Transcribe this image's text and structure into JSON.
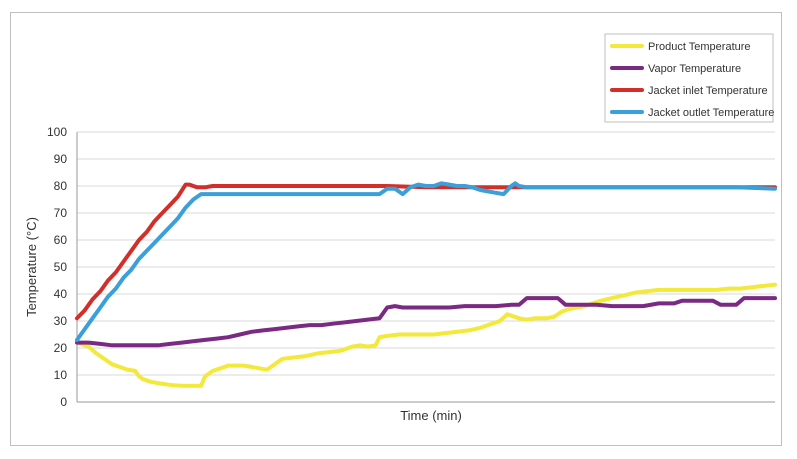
{
  "chart_data": {
    "type": "line",
    "title": "",
    "xlabel": "Time (min)",
    "ylabel": "Temperature (°C)",
    "ylim": [
      0,
      100
    ],
    "yticks": [
      0,
      10,
      20,
      30,
      40,
      50,
      60,
      70,
      80,
      90,
      100
    ],
    "x_tick_labels": false,
    "grid": "horizontal",
    "legend_position": "top-right",
    "series": [
      {
        "name": "Product Temperature",
        "color": "#f2e93a",
        "points": [
          [
            0,
            22
          ],
          [
            3,
            20.5
          ],
          [
            5,
            18
          ],
          [
            7,
            16
          ],
          [
            9,
            14
          ],
          [
            11,
            13
          ],
          [
            13,
            12
          ],
          [
            15,
            11.5
          ],
          [
            16,
            9.5
          ],
          [
            17,
            8.5
          ],
          [
            19,
            7.5
          ],
          [
            21,
            7
          ],
          [
            23,
            6.5
          ],
          [
            25,
            6.2
          ],
          [
            27,
            6
          ],
          [
            29,
            6
          ],
          [
            31,
            6
          ],
          [
            32,
            6
          ],
          [
            33,
            9.5
          ],
          [
            35,
            11.5
          ],
          [
            37,
            12.5
          ],
          [
            39,
            13.5
          ],
          [
            41,
            13.5
          ],
          [
            43,
            13.5
          ],
          [
            45,
            13
          ],
          [
            47,
            12.5
          ],
          [
            49,
            12
          ],
          [
            51,
            14
          ],
          [
            53,
            16
          ],
          [
            56,
            16.5
          ],
          [
            59,
            17
          ],
          [
            62,
            18
          ],
          [
            65,
            18.5
          ],
          [
            68,
            19
          ],
          [
            71,
            20.5
          ],
          [
            73,
            21
          ],
          [
            75,
            20.5
          ],
          [
            77,
            21
          ],
          [
            78,
            24
          ],
          [
            80,
            24.5
          ],
          [
            83,
            25
          ],
          [
            86,
            25
          ],
          [
            89,
            25
          ],
          [
            92,
            25
          ],
          [
            95,
            25.5
          ],
          [
            98,
            26
          ],
          [
            101,
            26.5
          ],
          [
            104,
            27.5
          ],
          [
            107,
            29
          ],
          [
            109,
            30
          ],
          [
            111,
            32.5
          ],
          [
            112,
            32
          ],
          [
            114,
            31
          ],
          [
            116,
            30.5
          ],
          [
            118,
            31
          ],
          [
            121,
            31
          ],
          [
            123,
            31.5
          ],
          [
            125,
            33.5
          ],
          [
            127,
            34.5
          ],
          [
            129,
            35
          ],
          [
            131,
            35.5
          ],
          [
            133,
            36.5
          ],
          [
            135,
            37.5
          ],
          [
            138,
            38.5
          ],
          [
            141,
            39.5
          ],
          [
            144,
            40.5
          ],
          [
            147,
            41
          ],
          [
            150,
            41.5
          ],
          [
            153,
            41.5
          ],
          [
            156,
            41.5
          ],
          [
            159,
            41.5
          ],
          [
            162,
            41.5
          ],
          [
            165,
            41.5
          ],
          [
            168,
            42
          ],
          [
            171,
            42
          ],
          [
            174,
            42.5
          ],
          [
            177,
            43
          ],
          [
            180,
            43.5
          ]
        ]
      },
      {
        "name": "Vapor Temperature",
        "color": "#7b2a84",
        "points": [
          [
            0,
            22
          ],
          [
            3,
            22
          ],
          [
            6,
            21.5
          ],
          [
            9,
            21
          ],
          [
            12,
            21
          ],
          [
            15,
            21
          ],
          [
            18,
            21
          ],
          [
            21,
            21
          ],
          [
            24,
            21.5
          ],
          [
            27,
            22
          ],
          [
            30,
            22.5
          ],
          [
            33,
            23
          ],
          [
            36,
            23.5
          ],
          [
            39,
            24
          ],
          [
            42,
            25
          ],
          [
            45,
            26
          ],
          [
            48,
            26.5
          ],
          [
            51,
            27
          ],
          [
            54,
            27.5
          ],
          [
            57,
            28
          ],
          [
            60,
            28.5
          ],
          [
            63,
            28.5
          ],
          [
            66,
            29
          ],
          [
            69,
            29.5
          ],
          [
            72,
            30
          ],
          [
            75,
            30.5
          ],
          [
            78,
            31
          ],
          [
            80,
            35
          ],
          [
            82,
            35.5
          ],
          [
            84,
            35
          ],
          [
            88,
            35
          ],
          [
            92,
            35
          ],
          [
            96,
            35
          ],
          [
            100,
            35.5
          ],
          [
            104,
            35.5
          ],
          [
            108,
            35.5
          ],
          [
            112,
            36
          ],
          [
            114,
            36
          ],
          [
            116,
            38.5
          ],
          [
            120,
            38.5
          ],
          [
            124,
            38.5
          ],
          [
            126,
            36
          ],
          [
            130,
            36
          ],
          [
            134,
            36
          ],
          [
            138,
            35.5
          ],
          [
            142,
            35.5
          ],
          [
            146,
            35.5
          ],
          [
            150,
            36.5
          ],
          [
            154,
            36.5
          ],
          [
            156,
            37.5
          ],
          [
            160,
            37.5
          ],
          [
            164,
            37.5
          ],
          [
            166,
            36
          ],
          [
            170,
            36
          ],
          [
            172,
            38.5
          ],
          [
            176,
            38.5
          ],
          [
            180,
            38.5
          ]
        ]
      },
      {
        "name": "Jacket inlet Temperature",
        "color": "#d22f2b",
        "points": [
          [
            0,
            31
          ],
          [
            2,
            34
          ],
          [
            4,
            38
          ],
          [
            6,
            41
          ],
          [
            8,
            45
          ],
          [
            10,
            48
          ],
          [
            12,
            52
          ],
          [
            14,
            56
          ],
          [
            16,
            60
          ],
          [
            18,
            63
          ],
          [
            20,
            67
          ],
          [
            22,
            70
          ],
          [
            24,
            73
          ],
          [
            26,
            76
          ],
          [
            28,
            80.5
          ],
          [
            29,
            80.5
          ],
          [
            30,
            80
          ],
          [
            31,
            79.5
          ],
          [
            33,
            79.5
          ],
          [
            35,
            80
          ],
          [
            40,
            80
          ],
          [
            50,
            80
          ],
          [
            60,
            80
          ],
          [
            70,
            80
          ],
          [
            80,
            80
          ],
          [
            90,
            79.5
          ],
          [
            100,
            79.5
          ],
          [
            110,
            79.5
          ],
          [
            120,
            79.5
          ],
          [
            130,
            79.5
          ],
          [
            140,
            79.5
          ],
          [
            150,
            79.5
          ],
          [
            160,
            79.5
          ],
          [
            170,
            79.5
          ],
          [
            180,
            79.5
          ]
        ]
      },
      {
        "name": "Jacket outlet Temperature",
        "color": "#3ba0d9",
        "points": [
          [
            0,
            23
          ],
          [
            2,
            27
          ],
          [
            4,
            31
          ],
          [
            6,
            35
          ],
          [
            8,
            39
          ],
          [
            10,
            42
          ],
          [
            12,
            46
          ],
          [
            14,
            49
          ],
          [
            16,
            53
          ],
          [
            18,
            56
          ],
          [
            20,
            59
          ],
          [
            22,
            62
          ],
          [
            24,
            65
          ],
          [
            26,
            68
          ],
          [
            28,
            72
          ],
          [
            30,
            75
          ],
          [
            32,
            77
          ],
          [
            34,
            77
          ],
          [
            40,
            77
          ],
          [
            50,
            77
          ],
          [
            60,
            77
          ],
          [
            70,
            77
          ],
          [
            78,
            77
          ],
          [
            80,
            79
          ],
          [
            82,
            79
          ],
          [
            84,
            77
          ],
          [
            86,
            79.5
          ],
          [
            88,
            80.5
          ],
          [
            90,
            80
          ],
          [
            92,
            80
          ],
          [
            94,
            81
          ],
          [
            96,
            80.5
          ],
          [
            98,
            80
          ],
          [
            100,
            80
          ],
          [
            102,
            79.5
          ],
          [
            104,
            78.5
          ],
          [
            106,
            78
          ],
          [
            108,
            77.5
          ],
          [
            110,
            77
          ],
          [
            112,
            80
          ],
          [
            113,
            81
          ],
          [
            114,
            80
          ],
          [
            116,
            79.5
          ],
          [
            120,
            79.5
          ],
          [
            130,
            79.5
          ],
          [
            140,
            79.5
          ],
          [
            150,
            79.5
          ],
          [
            160,
            79.5
          ],
          [
            170,
            79.5
          ],
          [
            180,
            79
          ]
        ]
      }
    ]
  }
}
